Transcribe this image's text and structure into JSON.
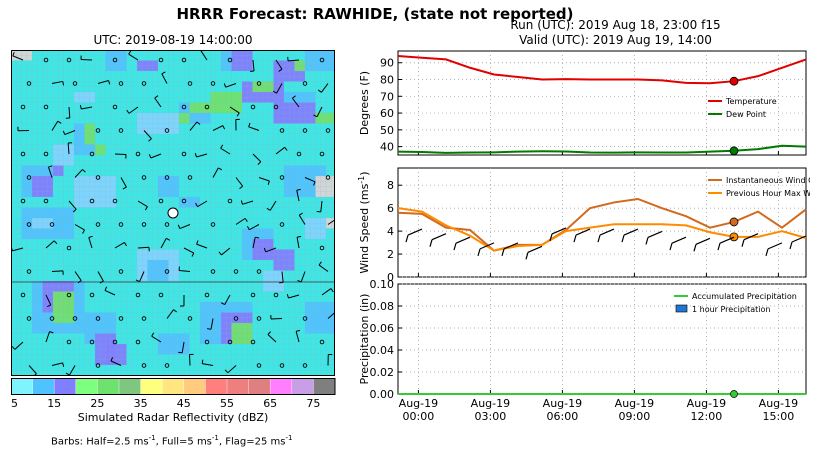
{
  "header": {
    "title": "HRRR Forecast: RAWHIDE, (state not reported)",
    "run_line": "Run (UTC): 2019 Aug 18, 23:00 f15",
    "valid_line": "Valid (UTC): 2019 Aug 19, 14:00"
  },
  "map": {
    "title": "UTC: 2019-08-19 14:00:00",
    "colorbar_label": "Simulated Radar Reflectivity (dBZ)",
    "colorbar_ticks": [
      "5",
      "15",
      "25",
      "35",
      "45",
      "55",
      "65",
      "75"
    ],
    "colorbar_colors": [
      "#7ff4ff",
      "#4fc3ff",
      "#7f7fff",
      "#7fff7f",
      "#6de26d",
      "#7fc77f",
      "#ffff7f",
      "#ffe67f",
      "#ffcc7f",
      "#ff7f7f",
      "#ef7f7f",
      "#e07f7f",
      "#ff7fff",
      "#c89fe6",
      "#7f7f7f"
    ],
    "barbs_note_prefix": "Barbs: Half=2.5 ms",
    "barbs_note_mid": ", Full=5 ms",
    "barbs_note_end": ", Flag=25 ms",
    "unit_exponent": "-1",
    "colors": {
      "background": "#3fe6e6",
      "grid": "#a9a9a9",
      "green": "#6ee36e",
      "blue": "#7f7fff",
      "gray": "#d6d6d6"
    }
  },
  "chart_data": [
    {
      "type": "line",
      "ylabel": "Degrees (F)",
      "ylim": [
        35,
        97
      ],
      "yticks": [
        "40",
        "50",
        "60",
        "70",
        "80",
        "90"
      ],
      "x": [
        "Aug-19 00:00",
        "Aug-19 01:00",
        "Aug-19 02:00",
        "Aug-19 03:00",
        "Aug-19 04:00",
        "Aug-19 05:00",
        "Aug-19 06:00",
        "Aug-19 07:00",
        "Aug-19 08:00",
        "Aug-19 09:00",
        "Aug-19 10:00",
        "Aug-19 11:00",
        "Aug-19 12:00",
        "Aug-19 13:00",
        "Aug-19 14:00",
        "Aug-19 15:00",
        "Aug-19 16:00",
        "Aug-19 17:00"
      ],
      "series": [
        {
          "name": "Temperature",
          "color": "#e00000",
          "values": [
            94,
            93,
            92,
            87,
            83,
            81.5,
            80,
            80.2,
            80,
            80,
            80,
            79.5,
            78,
            77.8,
            79,
            82,
            87,
            92
          ]
        },
        {
          "name": "Dew Point",
          "color": "#007a00",
          "values": [
            37,
            36.8,
            36.3,
            36.5,
            36.6,
            37,
            37.2,
            37.1,
            36.5,
            36.4,
            36.6,
            36.5,
            36.5,
            37,
            37.5,
            38.5,
            40.5,
            40
          ]
        }
      ],
      "marker_x": "Aug-19 14:00",
      "legend": "right"
    },
    {
      "type": "line",
      "ylabel": "Wind Speed (ms",
      "ylabel_sup": "-1",
      "ylim": [
        0,
        9.5
      ],
      "yticks": [
        "0",
        "2",
        "4",
        "6",
        "8"
      ],
      "x": [
        "Aug-19 00:00",
        "Aug-19 01:00",
        "Aug-19 02:00",
        "Aug-19 03:00",
        "Aug-19 04:00",
        "Aug-19 05:00",
        "Aug-19 06:00",
        "Aug-19 07:00",
        "Aug-19 08:00",
        "Aug-19 09:00",
        "Aug-19 10:00",
        "Aug-19 11:00",
        "Aug-19 12:00",
        "Aug-19 13:00",
        "Aug-19 14:00",
        "Aug-19 15:00",
        "Aug-19 16:00",
        "Aug-19 17:00"
      ],
      "series": [
        {
          "name": "Instantaneous Wind Gust",
          "color": "#d2691e",
          "values": [
            5.6,
            5.5,
            4.3,
            4.1,
            2.3,
            2.8,
            2.8,
            4.1,
            6.0,
            6.5,
            6.8,
            6.0,
            5.3,
            4.3,
            4.8,
            5.7,
            4.3,
            5.9
          ]
        },
        {
          "name": "Previous Hour Max Wind",
          "color": "#ff8c00",
          "values": [
            6.0,
            5.7,
            4.5,
            3.6,
            2.3,
            2.7,
            2.8,
            4.0,
            4.3,
            4.6,
            4.6,
            4.6,
            4.5,
            3.9,
            3.5,
            3.5,
            4.0,
            3.4
          ]
        }
      ],
      "marker_x": "Aug-19 14:00",
      "legend": "top-right"
    },
    {
      "type": "bar",
      "ylabel": "Precipitation (in)",
      "ylim": [
        0,
        0.1
      ],
      "yticks": [
        "0.00",
        "0.02",
        "0.04",
        "0.06",
        "0.08",
        "0.10"
      ],
      "xticks": [
        [
          "Aug-19",
          "00:00"
        ],
        [
          "Aug-19",
          "03:00"
        ],
        [
          "Aug-19",
          "06:00"
        ],
        [
          "Aug-19",
          "09:00"
        ],
        [
          "Aug-19",
          "12:00"
        ],
        [
          "Aug-19",
          "15:00"
        ]
      ],
      "series": [
        {
          "name": "Accumulated Precipitation",
          "color": "#32cd32",
          "values": [
            0,
            0,
            0,
            0,
            0,
            0,
            0,
            0,
            0,
            0,
            0,
            0,
            0,
            0,
            0,
            0,
            0,
            0
          ]
        },
        {
          "name": "1 hour Precipitation",
          "color": "#1f77d4",
          "values": [
            0,
            0,
            0,
            0,
            0,
            0,
            0,
            0,
            0,
            0,
            0,
            0,
            0,
            0,
            0,
            0,
            0,
            0
          ]
        }
      ],
      "legend": "top-right"
    }
  ]
}
